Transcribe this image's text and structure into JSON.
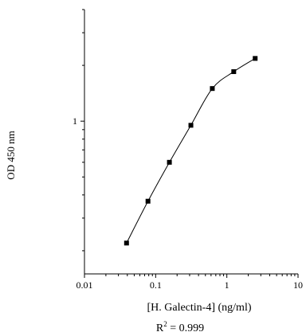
{
  "chart_data": {
    "type": "line",
    "title": "",
    "xlabel": "[H. Galectin-4] (ng/ml)",
    "ylabel": "OD 450 nm",
    "x_scale": "log",
    "y_scale": "log",
    "xlim": [
      0.01,
      10
    ],
    "ylim": [
      0.15,
      4
    ],
    "x_ticks": [
      "0.01",
      "0.1",
      "1",
      "10"
    ],
    "y_ticks": [
      "1"
    ],
    "grid": false,
    "series": [
      {
        "x": [
          0.039,
          0.078,
          0.156,
          0.3125,
          0.625,
          1.25,
          2.5
        ],
        "y": [
          0.22,
          0.37,
          0.6,
          0.95,
          1.5,
          1.85,
          2.18
        ]
      }
    ],
    "annotation": {
      "r_prefix": "R",
      "r_exp": "2",
      "r_value": " = 0.999"
    },
    "colors": {
      "line": "#000000",
      "marker": "#000000"
    }
  }
}
